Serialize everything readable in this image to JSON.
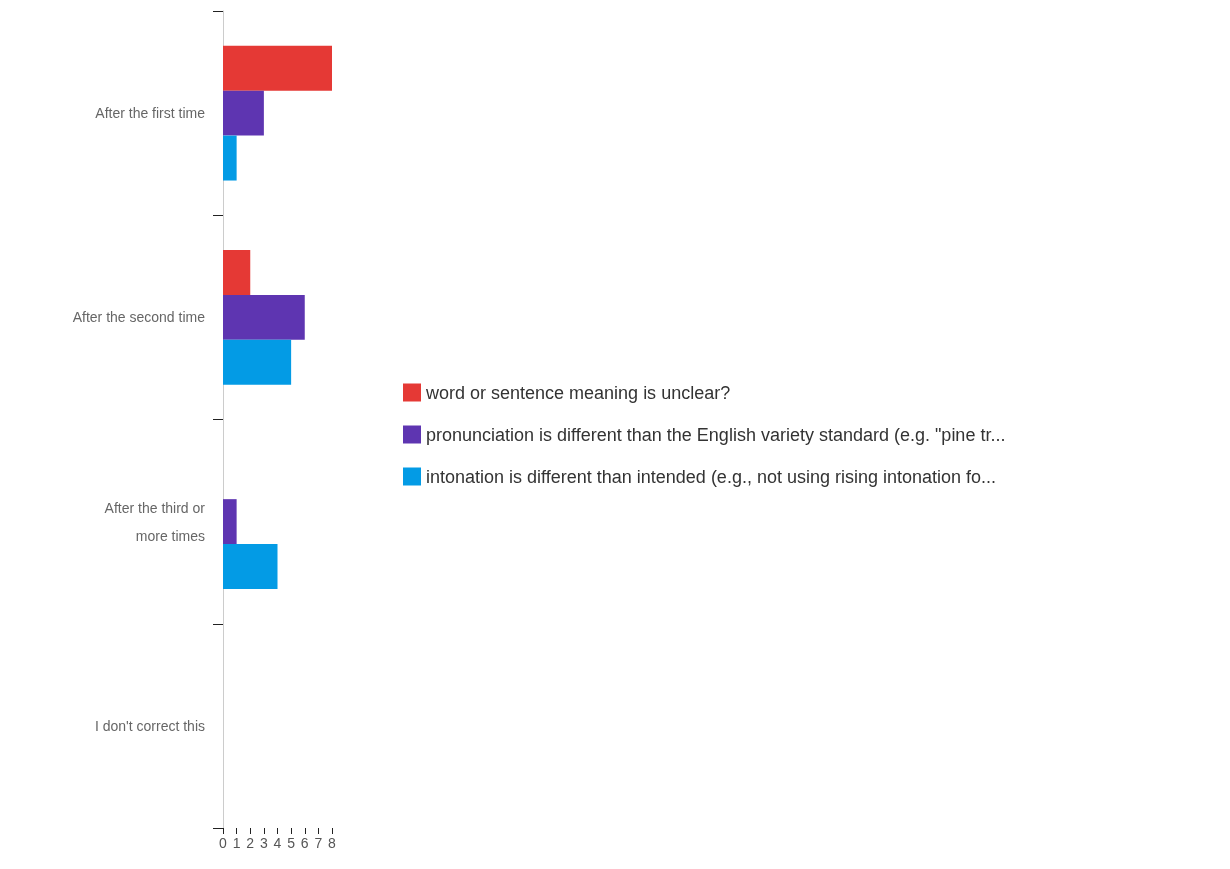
{
  "chart_data": {
    "type": "bar",
    "orientation": "horizontal",
    "categories": [
      "After the first time",
      "After the second time",
      "After the third or\nmore times",
      "I don't correct this"
    ],
    "series": [
      {
        "name": "word or sentence meaning is unclear?",
        "color": "#e53935",
        "values": [
          8,
          2,
          0,
          0
        ]
      },
      {
        "name": "pronunciation is different than the English variety standard (e.g. \"pine tr...",
        "color": "#5e35b1",
        "values": [
          3,
          6,
          1,
          0
        ]
      },
      {
        "name": "intonation is different than intended (e.g., not using rising intonation fo...",
        "color": "#039be5",
        "values": [
          1,
          5,
          4,
          0
        ]
      }
    ],
    "xlim": [
      0,
      8
    ],
    "xticks": [
      0,
      1,
      2,
      3,
      4,
      5,
      6,
      7,
      8
    ],
    "grid": false,
    "legend": "right"
  }
}
